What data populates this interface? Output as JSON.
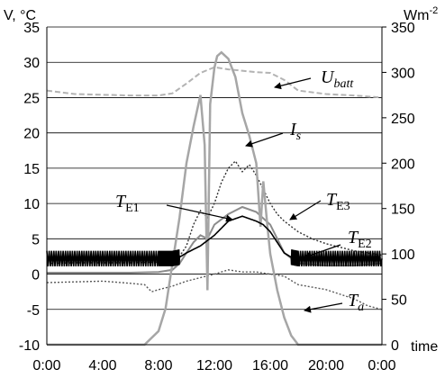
{
  "chart_data": {
    "type": "line",
    "left_axis": {
      "unit_label": "V, °C",
      "min": -10,
      "max": 35,
      "ticks": [
        -10,
        -5,
        0,
        5,
        10,
        15,
        20,
        25,
        30,
        35
      ]
    },
    "right_axis": {
      "unit_label": "Wm-2",
      "unit_base": "Wm",
      "unit_exp": "-2",
      "min": 0,
      "max": 350,
      "ticks": [
        0,
        50,
        100,
        150,
        200,
        250,
        300,
        350
      ]
    },
    "x_axis": {
      "label": "time",
      "ticks": [
        "0:00",
        "4:00",
        "8:00",
        "12:00",
        "16:00",
        "20:00",
        "0:00"
      ],
      "min_hours": 0,
      "max_hours": 24
    },
    "grid": "horizontal",
    "legend": "none",
    "series": [
      {
        "name": "U_batt",
        "label_main": "U",
        "label_sub": "batt",
        "axis": "left",
        "color": "#b3b3b3",
        "style": "dashed",
        "x": [
          0,
          2,
          4,
          6,
          8,
          9,
          10,
          11,
          12,
          13,
          14,
          15,
          16,
          17,
          18,
          20,
          22,
          24
        ],
        "y": [
          26,
          25.5,
          25.4,
          25.3,
          25.3,
          25.6,
          27,
          28.5,
          29.3,
          29,
          28.8,
          28.6,
          28.5,
          27.5,
          26,
          25.5,
          25.3,
          25
        ]
      },
      {
        "name": "I_s",
        "label_main": "I",
        "label_sub": "s",
        "axis": "right",
        "color": "#a6a6a6",
        "style": "solid",
        "x": [
          0,
          2,
          4,
          6,
          7,
          8,
          8.5,
          9,
          9.5,
          10,
          10.5,
          11,
          11.3,
          11.5,
          11.7,
          12,
          12.2,
          12.5,
          13,
          13.5,
          14,
          14.5,
          15,
          15.3,
          15.5,
          15.8,
          16,
          16.5,
          17,
          17.5,
          18,
          20,
          24
        ],
        "y": [
          0,
          0,
          0,
          0,
          0,
          15,
          40,
          90,
          140,
          200,
          240,
          275,
          220,
          60,
          265,
          305,
          318,
          322,
          315,
          295,
          255,
          230,
          200,
          130,
          180,
          130,
          100,
          60,
          30,
          10,
          0,
          0,
          0
        ]
      },
      {
        "name": "T_E3",
        "label_main": "T",
        "label_sub": "E3",
        "axis": "left",
        "color": "#333333",
        "style": "dotted",
        "x": [
          0,
          2,
          4,
          6,
          8,
          9,
          9.5,
          10,
          10.5,
          11,
          11.5,
          12,
          12.5,
          13,
          13.5,
          14,
          14.5,
          15,
          15.5,
          16,
          16.5,
          17,
          18,
          19,
          20,
          21,
          22,
          23,
          24
        ],
        "y": [
          1.5,
          1.6,
          1.6,
          1.6,
          1.7,
          1.9,
          2.5,
          4,
          7,
          9,
          8,
          10,
          13,
          15,
          16,
          14.5,
          15.5,
          14,
          12,
          10,
          8.5,
          7.5,
          6,
          5,
          4.3,
          3.8,
          3.3,
          3,
          2.7
        ]
      },
      {
        "name": "T_E1",
        "label_main": "T",
        "label_sub": "E1",
        "axis": "left",
        "color": "#000000",
        "style": "solid-noisy",
        "x": [
          0,
          2,
          4,
          6,
          8,
          9,
          9.5,
          10,
          10.5,
          11,
          12,
          13,
          14,
          15,
          15.5,
          16,
          16.5,
          17,
          17.5,
          18,
          20,
          22,
          24
        ],
        "y": [
          2.2,
          2.2,
          2.2,
          2.2,
          2.2,
          2.2,
          2.4,
          3,
          3.5,
          4,
          5.5,
          7.5,
          8.2,
          7.5,
          7,
          6,
          4.5,
          3,
          2.4,
          2.2,
          2.2,
          2.2,
          2.2
        ]
      },
      {
        "name": "T_E2",
        "label_main": "T",
        "label_sub": "E2",
        "axis": "left",
        "color": "#8c8c8c",
        "style": "solid",
        "x": [
          0,
          2,
          4,
          6,
          8,
          9,
          9.5,
          10,
          10.5,
          11,
          11.5,
          12,
          13,
          14,
          15,
          16,
          16.5,
          17,
          18,
          20,
          22,
          24
        ],
        "y": [
          0.2,
          0.2,
          0.2,
          0.2,
          0.3,
          0.6,
          1.5,
          3,
          4.5,
          5.5,
          5,
          7,
          8.5,
          9.5,
          8.8,
          7,
          5,
          3,
          1.5,
          1.2,
          1.2,
          1.5
        ]
      },
      {
        "name": "T_a",
        "label_main": "T",
        "label_sub": "a",
        "axis": "left",
        "color": "#595959",
        "style": "dotted",
        "x": [
          0,
          2,
          4,
          6,
          7,
          7.5,
          8,
          9,
          10,
          11,
          12,
          13,
          14,
          15,
          16,
          17,
          18,
          20,
          22,
          23,
          24
        ],
        "y": [
          -1.2,
          -1.1,
          -1.0,
          -1.3,
          -1.5,
          -2.5,
          -2.2,
          -1.7,
          -1,
          -0.5,
          0,
          0.6,
          0.3,
          0.3,
          0,
          -0.3,
          -1.5,
          -2.2,
          -3.5,
          -4.5,
          -5
        ]
      }
    ]
  }
}
